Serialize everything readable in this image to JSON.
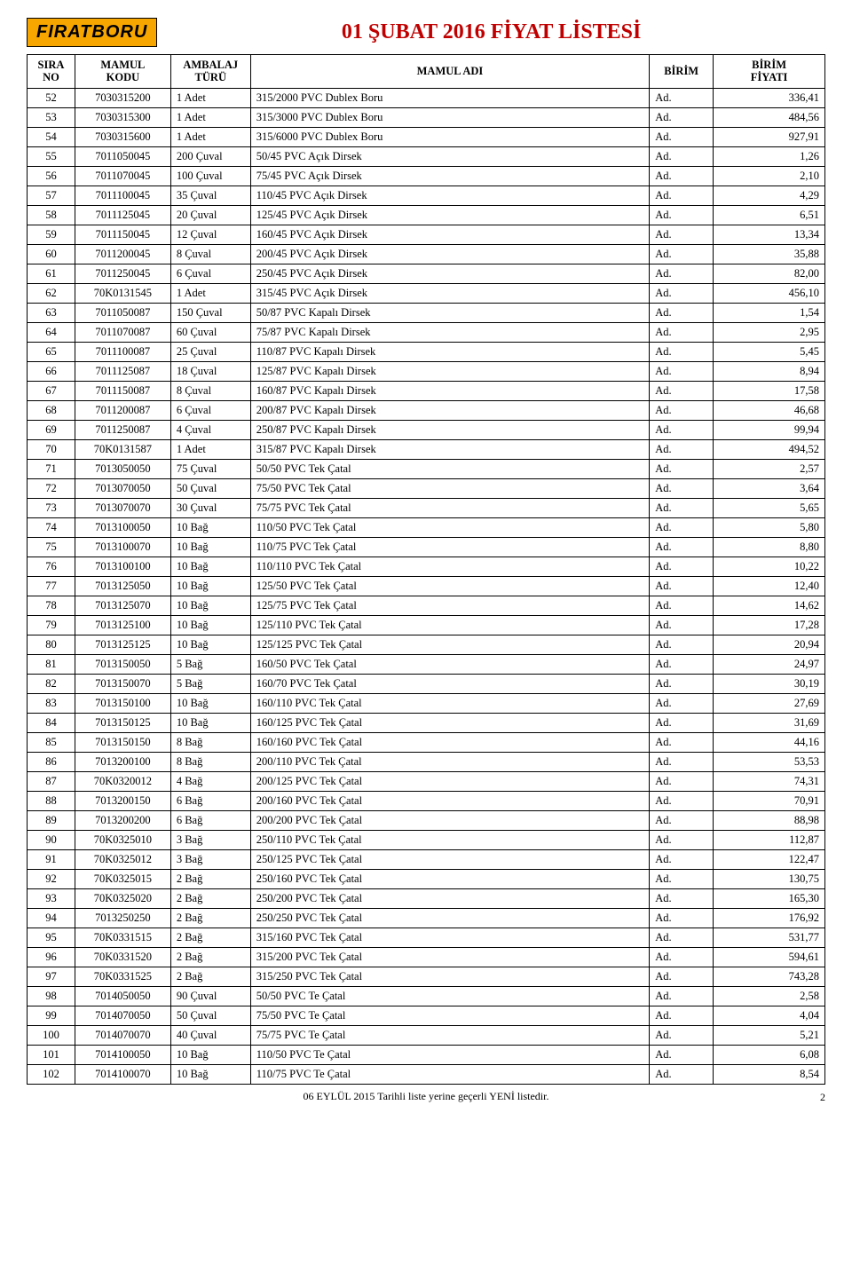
{
  "logo_text": "FIRATBORU",
  "page_title": "01 ŞUBAT 2016 FİYAT LİSTESİ",
  "footer_text": "06 EYLÜL 2015 Tarihli liste yerine geçerli YENİ listedir.",
  "page_number": "2",
  "columns": [
    "SIRA\nNO",
    "MAMUL\nKODU",
    "AMBALAJ\nTÜRÜ",
    "MAMUL ADI",
    "BİRİM",
    "BİRİM\nFİYATI"
  ],
  "rows": [
    [
      "52",
      "7030315200",
      "1 Adet",
      "315/2000 PVC Dublex Boru",
      "Ad.",
      "336,41"
    ],
    [
      "53",
      "7030315300",
      "1 Adet",
      "315/3000 PVC Dublex Boru",
      "Ad.",
      "484,56"
    ],
    [
      "54",
      "7030315600",
      "1 Adet",
      "315/6000 PVC Dublex Boru",
      "Ad.",
      "927,91"
    ],
    [
      "55",
      "7011050045",
      "200 Çuval",
      "50/45 PVC Açık Dirsek",
      "Ad.",
      "1,26"
    ],
    [
      "56",
      "7011070045",
      "100 Çuval",
      "75/45 PVC Açık Dirsek",
      "Ad.",
      "2,10"
    ],
    [
      "57",
      "7011100045",
      "35 Çuval",
      "110/45 PVC Açık Dirsek",
      "Ad.",
      "4,29"
    ],
    [
      "58",
      "7011125045",
      "20 Çuval",
      "125/45 PVC Açık Dirsek",
      "Ad.",
      "6,51"
    ],
    [
      "59",
      "7011150045",
      "12 Çuval",
      "160/45 PVC Açık Dirsek",
      "Ad.",
      "13,34"
    ],
    [
      "60",
      "7011200045",
      "8 Çuval",
      "200/45 PVC Açık Dirsek",
      "Ad.",
      "35,88"
    ],
    [
      "61",
      "7011250045",
      "6 Çuval",
      "250/45 PVC Açık Dirsek",
      "Ad.",
      "82,00"
    ],
    [
      "62",
      "70K0131545",
      "1 Adet",
      "315/45 PVC Açık Dirsek",
      "Ad.",
      "456,10"
    ],
    [
      "63",
      "7011050087",
      "150 Çuval",
      "50/87 PVC Kapalı Dirsek",
      "Ad.",
      "1,54"
    ],
    [
      "64",
      "7011070087",
      "60 Çuval",
      "75/87 PVC Kapalı Dirsek",
      "Ad.",
      "2,95"
    ],
    [
      "65",
      "7011100087",
      "25 Çuval",
      "110/87 PVC Kapalı Dirsek",
      "Ad.",
      "5,45"
    ],
    [
      "66",
      "7011125087",
      "18 Çuval",
      "125/87 PVC Kapalı Dirsek",
      "Ad.",
      "8,94"
    ],
    [
      "67",
      "7011150087",
      "8 Çuval",
      "160/87 PVC Kapalı Dirsek",
      "Ad.",
      "17,58"
    ],
    [
      "68",
      "7011200087",
      "6 Çuval",
      "200/87 PVC Kapalı Dirsek",
      "Ad.",
      "46,68"
    ],
    [
      "69",
      "7011250087",
      "4 Çuval",
      "250/87 PVC Kapalı Dirsek",
      "Ad.",
      "99,94"
    ],
    [
      "70",
      "70K0131587",
      "1 Adet",
      "315/87 PVC Kapalı Dirsek",
      "Ad.",
      "494,52"
    ],
    [
      "71",
      "7013050050",
      "75 Çuval",
      "50/50 PVC Tek Çatal",
      "Ad.",
      "2,57"
    ],
    [
      "72",
      "7013070050",
      "50 Çuval",
      "75/50 PVC Tek Çatal",
      "Ad.",
      "3,64"
    ],
    [
      "73",
      "7013070070",
      "30 Çuval",
      "75/75 PVC Tek Çatal",
      "Ad.",
      "5,65"
    ],
    [
      "74",
      "7013100050",
      "10 Bağ",
      "110/50 PVC Tek Çatal",
      "Ad.",
      "5,80"
    ],
    [
      "75",
      "7013100070",
      "10 Bağ",
      "110/75 PVC Tek Çatal",
      "Ad.",
      "8,80"
    ],
    [
      "76",
      "7013100100",
      "10 Bağ",
      "110/110 PVC Tek Çatal",
      "Ad.",
      "10,22"
    ],
    [
      "77",
      "7013125050",
      "10 Bağ",
      "125/50 PVC Tek Çatal",
      "Ad.",
      "12,40"
    ],
    [
      "78",
      "7013125070",
      "10 Bağ",
      "125/75 PVC Tek Çatal",
      "Ad.",
      "14,62"
    ],
    [
      "79",
      "7013125100",
      "10 Bağ",
      "125/110 PVC Tek Çatal",
      "Ad.",
      "17,28"
    ],
    [
      "80",
      "7013125125",
      "10 Bağ",
      "125/125 PVC Tek Çatal",
      "Ad.",
      "20,94"
    ],
    [
      "81",
      "7013150050",
      "5 Bağ",
      "160/50 PVC Tek Çatal",
      "Ad.",
      "24,97"
    ],
    [
      "82",
      "7013150070",
      "5 Bağ",
      "160/70 PVC Tek Çatal",
      "Ad.",
      "30,19"
    ],
    [
      "83",
      "7013150100",
      "10 Bağ",
      "160/110 PVC Tek Çatal",
      "Ad.",
      "27,69"
    ],
    [
      "84",
      "7013150125",
      "10 Bağ",
      "160/125 PVC Tek Çatal",
      "Ad.",
      "31,69"
    ],
    [
      "85",
      "7013150150",
      "8 Bağ",
      "160/160 PVC Tek Çatal",
      "Ad.",
      "44,16"
    ],
    [
      "86",
      "7013200100",
      "8 Bağ",
      "200/110 PVC Tek Çatal",
      "Ad.",
      "53,53"
    ],
    [
      "87",
      "70K0320012",
      "4 Bağ",
      "200/125 PVC Tek Çatal",
      "Ad.",
      "74,31"
    ],
    [
      "88",
      "7013200150",
      "6 Bağ",
      "200/160 PVC Tek Çatal",
      "Ad.",
      "70,91"
    ],
    [
      "89",
      "7013200200",
      "6 Bağ",
      "200/200 PVC Tek Çatal",
      "Ad.",
      "88,98"
    ],
    [
      "90",
      "70K0325010",
      "3 Bağ",
      "250/110 PVC Tek Çatal",
      "Ad.",
      "112,87"
    ],
    [
      "91",
      "70K0325012",
      "3 Bağ",
      "250/125 PVC Tek Çatal",
      "Ad.",
      "122,47"
    ],
    [
      "92",
      "70K0325015",
      "2 Bağ",
      "250/160 PVC Tek Çatal",
      "Ad.",
      "130,75"
    ],
    [
      "93",
      "70K0325020",
      "2 Bağ",
      "250/200 PVC Tek Çatal",
      "Ad.",
      "165,30"
    ],
    [
      "94",
      "7013250250",
      "2 Bağ",
      "250/250 PVC Tek Çatal",
      "Ad.",
      "176,92"
    ],
    [
      "95",
      "70K0331515",
      "2 Bağ",
      "315/160 PVC Tek Çatal",
      "Ad.",
      "531,77"
    ],
    [
      "96",
      "70K0331520",
      "2 Bağ",
      "315/200 PVC Tek Çatal",
      "Ad.",
      "594,61"
    ],
    [
      "97",
      "70K0331525",
      "2 Bağ",
      "315/250 PVC Tek Çatal",
      "Ad.",
      "743,28"
    ],
    [
      "98",
      "7014050050",
      "90 Çuval",
      "50/50 PVC Te Çatal",
      "Ad.",
      "2,58"
    ],
    [
      "99",
      "7014070050",
      "50 Çuval",
      "75/50 PVC Te Çatal",
      "Ad.",
      "4,04"
    ],
    [
      "100",
      "7014070070",
      "40 Çuval",
      "75/75 PVC Te Çatal",
      "Ad.",
      "5,21"
    ],
    [
      "101",
      "7014100050",
      "10 Bağ",
      "110/50 PVC Te Çatal",
      "Ad.",
      "6,08"
    ],
    [
      "102",
      "7014100070",
      "10 Bağ",
      "110/75 PVC Te Çatal",
      "Ad.",
      "8,54"
    ]
  ]
}
